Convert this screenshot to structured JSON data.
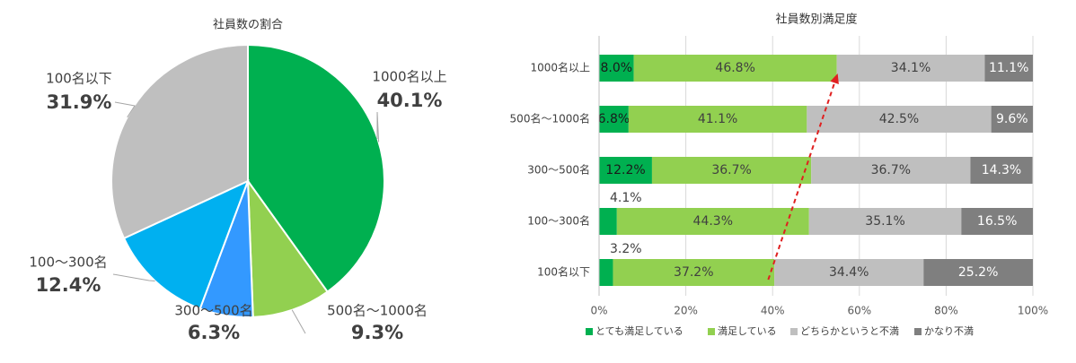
{
  "chart_data": [
    {
      "type": "pie",
      "title": "社員数の割合",
      "slices": [
        {
          "label": "1000名以上",
          "value": 40.1,
          "value_label": "40.1%",
          "color": "#00B050"
        },
        {
          "label": "500名～1000名",
          "value": 9.3,
          "value_label": "9.3%",
          "color": "#92D050"
        },
        {
          "label": "300～500名",
          "value": 6.3,
          "value_label": "6.3%",
          "color": "#3399FF"
        },
        {
          "label": "100～300名",
          "value": 12.4,
          "value_label": "12.4%",
          "color": "#00B0F0"
        },
        {
          "label": "100名以下",
          "value": 31.9,
          "value_label": "31.9%",
          "color": "#BFBFBF"
        }
      ]
    },
    {
      "type": "bar",
      "orientation": "horizontal",
      "stacked": "percent",
      "title": "社員数別満足度",
      "categories": [
        "1000名以上",
        "500名～1000名",
        "300～500名",
        "100～300名",
        "100名以下"
      ],
      "series": [
        {
          "name": "とても満足している",
          "color": "#00B050",
          "values": [
            8.0,
            6.8,
            12.2,
            4.1,
            3.2
          ],
          "labels": [
            "8.0%",
            "6.8%",
            "12.2%",
            "4.1%",
            "3.2%"
          ]
        },
        {
          "name": "満足している",
          "color": "#92D050",
          "values": [
            46.8,
            41.1,
            36.7,
            44.3,
            37.2
          ],
          "labels": [
            "46.8%",
            "41.1%",
            "36.7%",
            "44.3%",
            "37.2%"
          ]
        },
        {
          "name": "どちらかというと不満",
          "color": "#BFBFBF",
          "values": [
            34.1,
            42.5,
            36.7,
            35.1,
            34.4
          ],
          "labels": [
            "34.1%",
            "42.5%",
            "36.7%",
            "35.1%",
            "34.4%"
          ]
        },
        {
          "name": "かなり不満",
          "color": "#7F7F7F",
          "values": [
            11.1,
            9.6,
            14.3,
            16.5,
            25.2
          ],
          "labels": [
            "11.1%",
            "9.6%",
            "14.3%",
            "16.5%",
            "25.2%"
          ]
        }
      ],
      "xlim": [
        0,
        100
      ],
      "xticks": [
        "0%",
        "20%",
        "40%",
        "60%",
        "80%",
        "100%"
      ],
      "grid": true,
      "legend": "bottom",
      "annotation": {
        "type": "dashed-arrow",
        "color": "#E02020",
        "from": {
          "category": "100名以下",
          "x": 39
        },
        "to": {
          "category": "1000名以上",
          "x": 55
        }
      }
    }
  ]
}
